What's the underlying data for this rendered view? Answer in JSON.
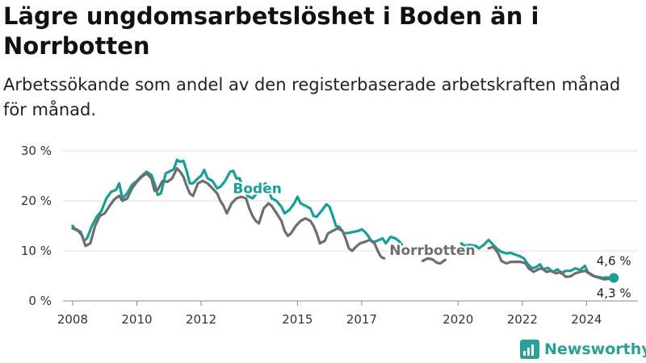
{
  "title": "Lägre ungdomsarbetslöshet i Boden än i Norrbotten",
  "subtitle": "Arbetssökande som andel av den registerbaserade arbetskraften månad för månad.",
  "brand": {
    "name": "Newsworthy",
    "color": "#2aa198"
  },
  "chart_data": {
    "type": "line",
    "x_unit": "year",
    "xlim": [
      2007.7,
      2025.6
    ],
    "ylim": [
      0,
      30
    ],
    "y_ticks": [
      {
        "value": 0,
        "label": "0 %"
      },
      {
        "value": 10,
        "label": "10 %"
      },
      {
        "value": 20,
        "label": "20 %"
      },
      {
        "value": 30,
        "label": "30 %"
      }
    ],
    "x_ticks": [
      {
        "value": 2008,
        "label": "2008"
      },
      {
        "value": 2010,
        "label": "2010"
      },
      {
        "value": 2012,
        "label": "2012"
      },
      {
        "value": 2015,
        "label": "2015"
      },
      {
        "value": 2017,
        "label": "2017"
      },
      {
        "value": 2020,
        "label": "2020"
      },
      {
        "value": 2022,
        "label": "2022"
      },
      {
        "value": 2024,
        "label": "2024"
      }
    ],
    "grid": true,
    "series": [
      {
        "name": "Boden",
        "color": "#17a096",
        "label_at": [
          2013.75,
          21.5
        ],
        "end_label": "4,6 %",
        "points": [
          [
            2008.0,
            15.0
          ],
          [
            2008.1,
            14.2
          ],
          [
            2008.25,
            13.8
          ],
          [
            2008.35,
            12.0
          ],
          [
            2008.45,
            12.5
          ],
          [
            2008.6,
            15.0
          ],
          [
            2008.75,
            16.8
          ],
          [
            2008.9,
            18.0
          ],
          [
            2009.05,
            20.5
          ],
          [
            2009.2,
            21.8
          ],
          [
            2009.35,
            22.2
          ],
          [
            2009.45,
            23.5
          ],
          [
            2009.55,
            20.5
          ],
          [
            2009.7,
            21.5
          ],
          [
            2009.85,
            23.2
          ],
          [
            2010.0,
            24.0
          ],
          [
            2010.15,
            25.0
          ],
          [
            2010.3,
            25.8
          ],
          [
            2010.45,
            25.2
          ],
          [
            2010.55,
            23.5
          ],
          [
            2010.65,
            21.2
          ],
          [
            2010.75,
            21.5
          ],
          [
            2010.9,
            25.5
          ],
          [
            2011.05,
            26.0
          ],
          [
            2011.15,
            26.3
          ],
          [
            2011.25,
            28.2
          ],
          [
            2011.35,
            27.8
          ],
          [
            2011.45,
            28.0
          ],
          [
            2011.55,
            26.0
          ],
          [
            2011.65,
            23.5
          ],
          [
            2011.75,
            23.5
          ],
          [
            2011.9,
            24.5
          ],
          [
            2012.0,
            25.0
          ],
          [
            2012.1,
            26.2
          ],
          [
            2012.2,
            24.5
          ],
          [
            2012.35,
            24.0
          ],
          [
            2012.5,
            22.5
          ],
          [
            2012.6,
            22.8
          ],
          [
            2012.75,
            24.0
          ],
          [
            2012.9,
            25.8
          ],
          [
            2013.0,
            26.0
          ],
          [
            2013.1,
            24.5
          ],
          [
            2013.2,
            24.5
          ],
          [
            2013.3,
            22.5
          ],
          [
            2013.45,
            21.0
          ],
          [
            2013.6,
            20.5
          ],
          [
            2014.0,
            23.5
          ],
          [
            2014.1,
            22.0
          ],
          [
            2014.2,
            20.5
          ],
          [
            2014.35,
            20.0
          ],
          [
            2014.5,
            18.8
          ],
          [
            2014.6,
            17.5
          ],
          [
            2014.75,
            18.2
          ],
          [
            2014.9,
            19.5
          ],
          [
            2015.0,
            20.8
          ],
          [
            2015.1,
            19.5
          ],
          [
            2015.25,
            19.0
          ],
          [
            2015.4,
            18.5
          ],
          [
            2015.5,
            17.0
          ],
          [
            2015.6,
            16.8
          ],
          [
            2015.75,
            18.0
          ],
          [
            2015.9,
            19.3
          ],
          [
            2016.0,
            18.8
          ],
          [
            2016.1,
            17.0
          ],
          [
            2016.2,
            15.0
          ],
          [
            2016.3,
            14.8
          ],
          [
            2016.45,
            13.5
          ],
          [
            2016.6,
            13.6
          ],
          [
            2016.75,
            13.8
          ],
          [
            2016.9,
            14.0
          ],
          [
            2017.0,
            14.3
          ],
          [
            2017.1,
            13.8
          ],
          [
            2017.2,
            13.0
          ],
          [
            2017.3,
            12.0
          ],
          [
            2017.4,
            11.8
          ],
          [
            2017.55,
            12.2
          ],
          [
            2017.65,
            12.5
          ],
          [
            2017.75,
            11.5
          ],
          [
            2017.9,
            12.8
          ],
          [
            2018.05,
            12.5
          ],
          [
            2018.15,
            12.0
          ],
          [
            2018.25,
            11.3
          ],
          [
            2020.1,
            11.5
          ],
          [
            2020.2,
            11.0
          ],
          [
            2020.35,
            11.2
          ],
          [
            2020.55,
            11.0
          ],
          [
            2020.65,
            10.5
          ],
          [
            2020.8,
            11.2
          ],
          [
            2020.95,
            12.2
          ],
          [
            2021.05,
            11.5
          ],
          [
            2021.2,
            10.5
          ],
          [
            2021.35,
            9.8
          ],
          [
            2021.5,
            9.5
          ],
          [
            2021.65,
            9.6
          ],
          [
            2021.8,
            9.2
          ],
          [
            2021.9,
            9.0
          ],
          [
            2022.05,
            8.5
          ],
          [
            2022.15,
            7.5
          ],
          [
            2022.3,
            6.5
          ],
          [
            2022.45,
            6.8
          ],
          [
            2022.55,
            7.3
          ],
          [
            2022.65,
            6.3
          ],
          [
            2022.8,
            6.6
          ],
          [
            2022.95,
            5.8
          ],
          [
            2023.1,
            6.3
          ],
          [
            2023.2,
            5.5
          ],
          [
            2023.35,
            6.0
          ],
          [
            2023.5,
            6.0
          ],
          [
            2023.65,
            6.5
          ],
          [
            2023.8,
            6.2
          ],
          [
            2023.95,
            7.0
          ],
          [
            2024.05,
            5.6
          ],
          [
            2024.2,
            5.0
          ],
          [
            2024.35,
            4.8
          ],
          [
            2024.5,
            4.6
          ],
          [
            2024.6,
            4.7
          ],
          [
            2024.75,
            4.6
          ],
          [
            2024.85,
            4.6
          ]
        ]
      },
      {
        "name": "Norrbotten",
        "color": "#6e6e6e",
        "label_at": [
          2019.2,
          9.2
        ],
        "end_label": "4,3 %",
        "points": [
          [
            2008.0,
            14.5
          ],
          [
            2008.15,
            14.2
          ],
          [
            2008.3,
            13.0
          ],
          [
            2008.4,
            11.0
          ],
          [
            2008.55,
            11.5
          ],
          [
            2008.7,
            15.0
          ],
          [
            2008.85,
            17.0
          ],
          [
            2009.0,
            17.5
          ],
          [
            2009.15,
            19.0
          ],
          [
            2009.3,
            20.3
          ],
          [
            2009.45,
            21.0
          ],
          [
            2009.55,
            20.0
          ],
          [
            2009.7,
            20.5
          ],
          [
            2009.85,
            22.5
          ],
          [
            2010.0,
            23.8
          ],
          [
            2010.15,
            24.8
          ],
          [
            2010.3,
            25.5
          ],
          [
            2010.45,
            24.5
          ],
          [
            2010.55,
            22.0
          ],
          [
            2010.65,
            22.2
          ],
          [
            2010.8,
            24.0
          ],
          [
            2010.95,
            23.8
          ],
          [
            2011.1,
            24.5
          ],
          [
            2011.25,
            26.5
          ],
          [
            2011.35,
            25.8
          ],
          [
            2011.45,
            24.8
          ],
          [
            2011.55,
            23.0
          ],
          [
            2011.65,
            21.5
          ],
          [
            2011.75,
            21.0
          ],
          [
            2011.9,
            23.5
          ],
          [
            2012.05,
            24.0
          ],
          [
            2012.2,
            23.5
          ],
          [
            2012.35,
            22.5
          ],
          [
            2012.5,
            21.5
          ],
          [
            2012.6,
            20.0
          ],
          [
            2012.7,
            19.0
          ],
          [
            2012.8,
            17.5
          ],
          [
            2012.95,
            19.5
          ],
          [
            2013.1,
            20.5
          ],
          [
            2013.25,
            20.8
          ],
          [
            2013.4,
            20.5
          ],
          [
            2013.5,
            18.5
          ],
          [
            2013.6,
            17.0
          ],
          [
            2013.7,
            16.0
          ],
          [
            2013.8,
            15.5
          ],
          [
            2013.95,
            18.5
          ],
          [
            2014.1,
            19.5
          ],
          [
            2014.2,
            19.0
          ],
          [
            2014.35,
            17.5
          ],
          [
            2014.5,
            16.0
          ],
          [
            2014.6,
            14.0
          ],
          [
            2014.7,
            13.0
          ],
          [
            2014.8,
            13.5
          ],
          [
            2014.95,
            15.0
          ],
          [
            2015.1,
            16.0
          ],
          [
            2015.25,
            16.5
          ],
          [
            2015.4,
            16.0
          ],
          [
            2015.5,
            15.0
          ],
          [
            2015.6,
            13.5
          ],
          [
            2015.7,
            11.5
          ],
          [
            2015.85,
            12.0
          ],
          [
            2015.95,
            13.5
          ],
          [
            2016.1,
            14.0
          ],
          [
            2016.25,
            14.5
          ],
          [
            2016.4,
            14.0
          ],
          [
            2016.5,
            12.5
          ],
          [
            2016.6,
            10.5
          ],
          [
            2016.7,
            10.0
          ],
          [
            2016.85,
            11.0
          ],
          [
            2016.95,
            11.5
          ],
          [
            2017.1,
            11.8
          ],
          [
            2017.25,
            12.2
          ],
          [
            2017.4,
            11.5
          ],
          [
            2017.5,
            10.0
          ],
          [
            2017.6,
            8.8
          ],
          [
            2017.7,
            8.5
          ],
          [
            2018.9,
            8.0
          ],
          [
            2019.05,
            8.5
          ],
          [
            2019.2,
            8.3
          ],
          [
            2019.35,
            7.6
          ],
          [
            2019.45,
            7.5
          ],
          [
            2019.6,
            8.2
          ],
          [
            2020.95,
            10.5
          ],
          [
            2021.1,
            10.8
          ],
          [
            2021.25,
            9.5
          ],
          [
            2021.35,
            8.0
          ],
          [
            2021.5,
            7.5
          ],
          [
            2021.65,
            7.8
          ],
          [
            2021.8,
            7.8
          ],
          [
            2021.95,
            7.8
          ],
          [
            2022.1,
            7.5
          ],
          [
            2022.2,
            6.5
          ],
          [
            2022.35,
            5.8
          ],
          [
            2022.5,
            6.3
          ],
          [
            2022.6,
            6.5
          ],
          [
            2022.75,
            5.8
          ],
          [
            2022.9,
            6.0
          ],
          [
            2023.05,
            5.5
          ],
          [
            2023.2,
            5.8
          ],
          [
            2023.35,
            4.8
          ],
          [
            2023.5,
            4.9
          ],
          [
            2023.65,
            5.5
          ],
          [
            2023.8,
            5.8
          ],
          [
            2023.95,
            6.0
          ],
          [
            2024.1,
            5.5
          ],
          [
            2024.25,
            4.9
          ],
          [
            2024.4,
            4.6
          ],
          [
            2024.55,
            4.3
          ],
          [
            2024.7,
            4.4
          ],
          [
            2024.85,
            4.3
          ]
        ]
      }
    ]
  }
}
